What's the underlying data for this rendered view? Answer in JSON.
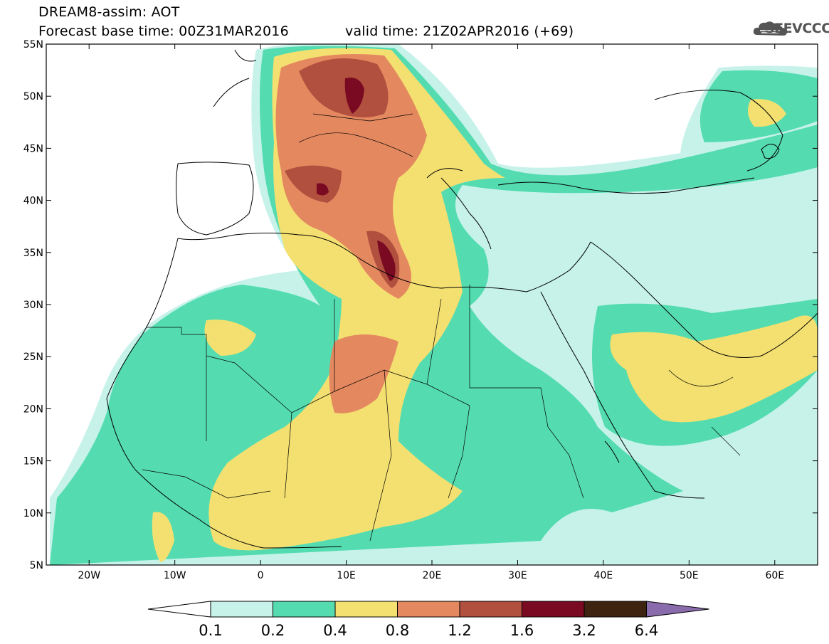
{
  "header": {
    "title_line1": "DREAM8-assim: AOT",
    "base_time": "Forecast base time: 00Z31MAR2016",
    "valid_time": "valid time: 21Z02APR2016 (+69)"
  },
  "logo": {
    "text": "SEEVCCC",
    "icon": "cloud-icon"
  },
  "map": {
    "variable": "AOT",
    "lon_range": [
      -25,
      65
    ],
    "lat_range": [
      5,
      55
    ],
    "lat_labels": [
      "55N",
      "50N",
      "45N",
      "40N",
      "35N",
      "30N",
      "25N",
      "20N",
      "15N",
      "10N",
      "5N"
    ],
    "lon_labels": [
      "20W",
      "10W",
      "0",
      "10E",
      "20E",
      "30E",
      "40E",
      "50E",
      "60E"
    ]
  },
  "colorbar": {
    "levels": [
      "0.1",
      "0.2",
      "0.4",
      "0.8",
      "1.2",
      "1.6",
      "3.2",
      "6.4"
    ],
    "colors": [
      "#ffffff",
      "#c6f2ea",
      "#54dcb0",
      "#f4e070",
      "#e4895f",
      "#b1503e",
      "#7a0a22",
      "#3e2310",
      "#8a6cad"
    ]
  }
}
